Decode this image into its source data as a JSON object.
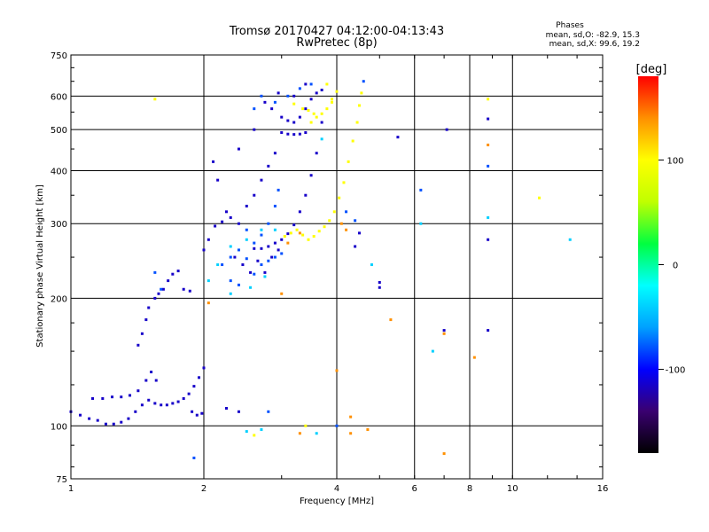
{
  "chart_data": {
    "type": "scatter",
    "title": "Tromsø 20170427 04:12:00-04:13:43",
    "subtitle": "RwPretec (8p)",
    "xlabel": "Frequency [MHz]",
    "ylabel": "Stationary phase Virtual Height [km]",
    "x_scale": "log",
    "y_scale": "log",
    "xlim": [
      1,
      16
    ],
    "ylim": [
      75,
      750
    ],
    "x_ticks": [
      1,
      2,
      4,
      6,
      8,
      10,
      16
    ],
    "y_ticks": [
      75,
      100,
      200,
      300,
      400,
      500,
      600,
      750
    ],
    "grid": true,
    "phase_stats": {
      "heading": "Phases",
      "line_o": "mean, sd,O: -82.9, 15.3",
      "line_x": "mean, sd,X:  99.6, 19.2"
    },
    "colorbar": {
      "label": "[deg]",
      "ticks": [
        100,
        0,
        -100
      ],
      "range": [
        -180,
        180
      ],
      "colors": [
        "#000000",
        "#3a0070",
        "#0000ff",
        "#00a0ff",
        "#00ffff",
        "#00ff40",
        "#c0ff00",
        "#ffff00",
        "#ff9000",
        "#ff0000"
      ]
    },
    "series": [
      {
        "phase_deg": -115,
        "points": [
          [
            1.0,
            108
          ],
          [
            1.05,
            106
          ],
          [
            1.1,
            104
          ],
          [
            1.15,
            103
          ],
          [
            1.2,
            101
          ],
          [
            1.25,
            101
          ],
          [
            1.3,
            102
          ],
          [
            1.35,
            104
          ],
          [
            1.4,
            108
          ],
          [
            1.45,
            112
          ],
          [
            1.5,
            115
          ],
          [
            1.55,
            113
          ],
          [
            1.6,
            112
          ],
          [
            1.65,
            112
          ],
          [
            1.7,
            113
          ],
          [
            1.75,
            114
          ],
          [
            1.8,
            116
          ],
          [
            1.85,
            119
          ],
          [
            1.9,
            124
          ],
          [
            1.95,
            130
          ],
          [
            2.0,
            137
          ],
          [
            1.12,
            116
          ],
          [
            1.18,
            116
          ],
          [
            1.24,
            117
          ],
          [
            1.3,
            117
          ],
          [
            1.36,
            118
          ],
          [
            1.42,
            121
          ],
          [
            1.48,
            128
          ],
          [
            1.52,
            134
          ],
          [
            1.56,
            128
          ],
          [
            1.42,
            155
          ],
          [
            1.45,
            165
          ],
          [
            1.48,
            178
          ],
          [
            1.5,
            190
          ],
          [
            1.55,
            200
          ],
          [
            1.58,
            205
          ],
          [
            1.62,
            210
          ],
          [
            1.66,
            220
          ],
          [
            1.7,
            228
          ],
          [
            1.75,
            232
          ],
          [
            1.8,
            210
          ],
          [
            1.86,
            208
          ],
          [
            1.88,
            108
          ],
          [
            1.93,
            106
          ],
          [
            1.98,
            107
          ],
          [
            2.12,
            296
          ],
          [
            2.2,
            303
          ],
          [
            2.3,
            310
          ],
          [
            2.4,
            300
          ],
          [
            2.5,
            330
          ],
          [
            2.6,
            350
          ],
          [
            2.7,
            380
          ],
          [
            2.8,
            410
          ],
          [
            2.9,
            440
          ],
          [
            3.0,
            535
          ],
          [
            3.1,
            525
          ],
          [
            3.2,
            520
          ],
          [
            3.3,
            535
          ],
          [
            3.4,
            560
          ],
          [
            3.5,
            590
          ],
          [
            3.6,
            610
          ],
          [
            3.7,
            620
          ],
          [
            2.6,
            262
          ],
          [
            2.7,
            262
          ],
          [
            2.8,
            265
          ],
          [
            2.9,
            270
          ],
          [
            3.0,
            275
          ],
          [
            3.1,
            284
          ],
          [
            3.2,
            298
          ],
          [
            3.3,
            320
          ],
          [
            3.4,
            350
          ],
          [
            3.5,
            390
          ],
          [
            3.6,
            440
          ],
          [
            3.7,
            520
          ],
          [
            3.0,
            492
          ],
          [
            3.1,
            488
          ],
          [
            3.2,
            487
          ],
          [
            3.3,
            488
          ],
          [
            3.4,
            492
          ],
          [
            5.0,
            218
          ],
          [
            5.0,
            212
          ],
          [
            7.0,
            168
          ],
          [
            8.8,
            168
          ],
          [
            4.4,
            265
          ],
          [
            4.5,
            285
          ],
          [
            3.4,
            640
          ],
          [
            3.2,
            600
          ],
          [
            2.1,
            420
          ],
          [
            2.15,
            380
          ],
          [
            2.25,
            320
          ],
          [
            2.35,
            250
          ],
          [
            2.45,
            240
          ],
          [
            2.55,
            230
          ],
          [
            2.65,
            245
          ],
          [
            2.75,
            230
          ],
          [
            2.85,
            250
          ],
          [
            2.95,
            260
          ],
          [
            2.4,
            450
          ],
          [
            2.6,
            500
          ],
          [
            2.75,
            580
          ],
          [
            2.85,
            560
          ],
          [
            2.95,
            610
          ],
          [
            5.5,
            480
          ],
          [
            8.8,
            530
          ],
          [
            8.8,
            275
          ],
          [
            7.1,
            500
          ],
          [
            2.25,
            110
          ],
          [
            2.4,
            108
          ],
          [
            2.0,
            260
          ],
          [
            2.05,
            275
          ]
        ]
      },
      {
        "phase_deg": -80,
        "points": [
          [
            2.2,
            240
          ],
          [
            2.3,
            250
          ],
          [
            2.4,
            260
          ],
          [
            2.5,
            248
          ],
          [
            2.6,
            270
          ],
          [
            2.7,
            282
          ],
          [
            2.8,
            300
          ],
          [
            2.9,
            330
          ],
          [
            2.95,
            360
          ],
          [
            2.5,
            290
          ],
          [
            2.7,
            240
          ],
          [
            2.9,
            250
          ],
          [
            3.0,
            255
          ],
          [
            2.3,
            220
          ],
          [
            2.4,
            215
          ],
          [
            2.6,
            228
          ],
          [
            2.8,
            245
          ],
          [
            2.6,
            560
          ],
          [
            2.7,
            600
          ],
          [
            2.9,
            580
          ],
          [
            3.1,
            600
          ],
          [
            3.3,
            625
          ],
          [
            3.5,
            640
          ],
          [
            4.6,
            650
          ],
          [
            6.2,
            360
          ],
          [
            8.8,
            410
          ],
          [
            4.0,
            100
          ],
          [
            2.8,
            108
          ],
          [
            1.9,
            84
          ],
          [
            1.55,
            230
          ],
          [
            1.6,
            210
          ],
          [
            4.4,
            305
          ],
          [
            4.2,
            320
          ]
        ]
      },
      {
        "phase_deg": -40,
        "points": [
          [
            2.05,
            220
          ],
          [
            2.15,
            240
          ],
          [
            2.3,
            265
          ],
          [
            2.5,
            275
          ],
          [
            2.7,
            290
          ],
          [
            2.9,
            290
          ],
          [
            2.3,
            205
          ],
          [
            2.55,
            212
          ],
          [
            2.75,
            225
          ],
          [
            3.7,
            475
          ],
          [
            4.8,
            240
          ],
          [
            6.2,
            300
          ],
          [
            8.8,
            310
          ],
          [
            13.5,
            275
          ],
          [
            3.6,
            96
          ],
          [
            6.6,
            150
          ],
          [
            2.7,
            98
          ],
          [
            2.5,
            97
          ]
        ]
      },
      {
        "phase_deg": 100,
        "points": [
          [
            3.05,
            280
          ],
          [
            3.15,
            285
          ],
          [
            3.25,
            290
          ],
          [
            3.35,
            282
          ],
          [
            3.45,
            275
          ],
          [
            3.55,
            280
          ],
          [
            3.65,
            288
          ],
          [
            3.75,
            295
          ],
          [
            3.85,
            305
          ],
          [
            3.95,
            320
          ],
          [
            4.05,
            345
          ],
          [
            4.15,
            375
          ],
          [
            4.25,
            420
          ],
          [
            4.35,
            470
          ],
          [
            4.45,
            520
          ],
          [
            4.5,
            570
          ],
          [
            4.55,
            610
          ],
          [
            3.5,
            520
          ],
          [
            3.6,
            535
          ],
          [
            3.7,
            545
          ],
          [
            3.8,
            560
          ],
          [
            3.9,
            580
          ],
          [
            4.0,
            615
          ],
          [
            3.2,
            575
          ],
          [
            3.35,
            560
          ],
          [
            3.45,
            555
          ],
          [
            3.55,
            545
          ],
          [
            3.9,
            590
          ],
          [
            1.55,
            590
          ],
          [
            11.5,
            345
          ],
          [
            8.8,
            590
          ],
          [
            2.6,
            95
          ],
          [
            3.4,
            100
          ],
          [
            3.8,
            640
          ]
        ]
      },
      {
        "phase_deg": 140,
        "points": [
          [
            3.0,
            205
          ],
          [
            3.1,
            270
          ],
          [
            3.3,
            285
          ],
          [
            4.1,
            300
          ],
          [
            4.2,
            290
          ],
          [
            4.3,
            105
          ],
          [
            4.3,
            96
          ],
          [
            5.3,
            178
          ],
          [
            7.0,
            86
          ],
          [
            7.0,
            165
          ],
          [
            8.8,
            460
          ],
          [
            8.2,
            145
          ],
          [
            3.3,
            96
          ],
          [
            4.7,
            98
          ],
          [
            2.05,
            195
          ],
          [
            4.0,
            135
          ]
        ]
      }
    ]
  }
}
